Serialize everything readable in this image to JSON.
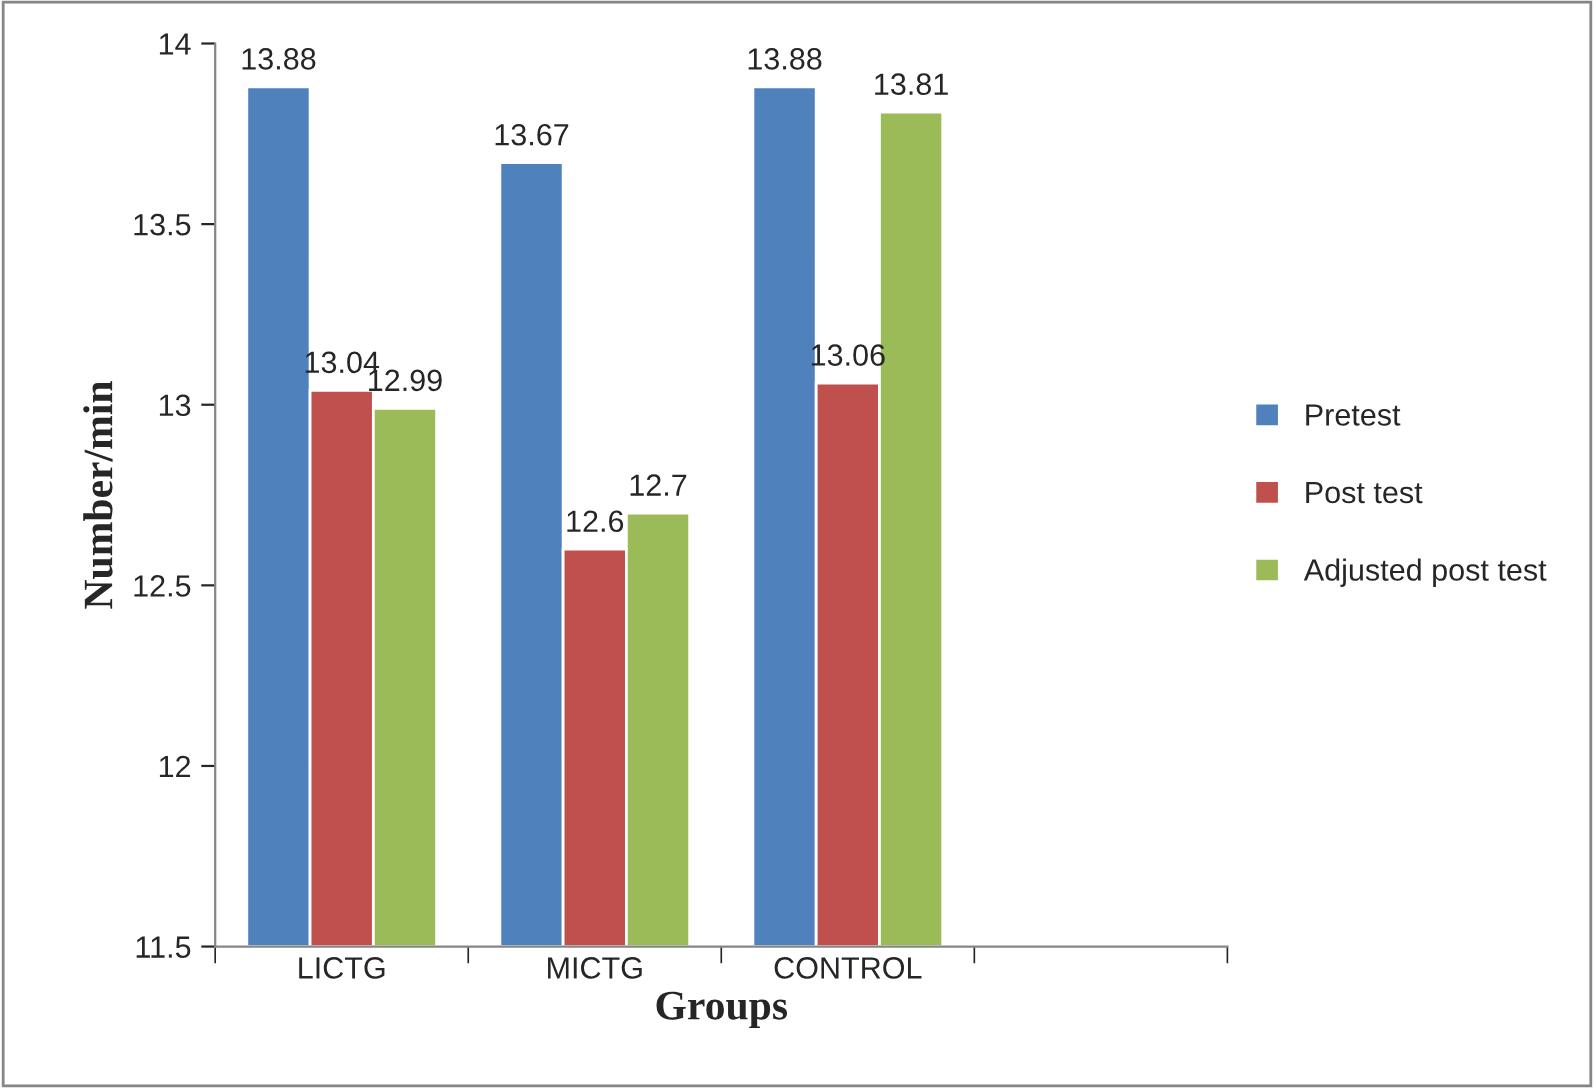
{
  "chart_data": {
    "type": "bar",
    "xlabel": "Groups",
    "ylabel": "Number/min",
    "categories": [
      "LICTG",
      "MICTG",
      "CONTROL",
      null
    ],
    "series": [
      {
        "name": "Pretest",
        "color": "#4f81bd",
        "values": [
          13.88,
          13.67,
          13.88,
          null
        ]
      },
      {
        "name": "Post test",
        "color": "#c0504d",
        "values": [
          13.04,
          12.6,
          13.06,
          null
        ]
      },
      {
        "name": "Adjusted post test",
        "color": "#9bbb59",
        "values": [
          12.99,
          12.7,
          13.81,
          null
        ]
      }
    ],
    "ylim": [
      11.5,
      14
    ],
    "yticks": [
      11.5,
      12,
      12.5,
      13,
      13.5,
      14
    ],
    "data_labels": true,
    "grid": false,
    "legend": "right"
  }
}
